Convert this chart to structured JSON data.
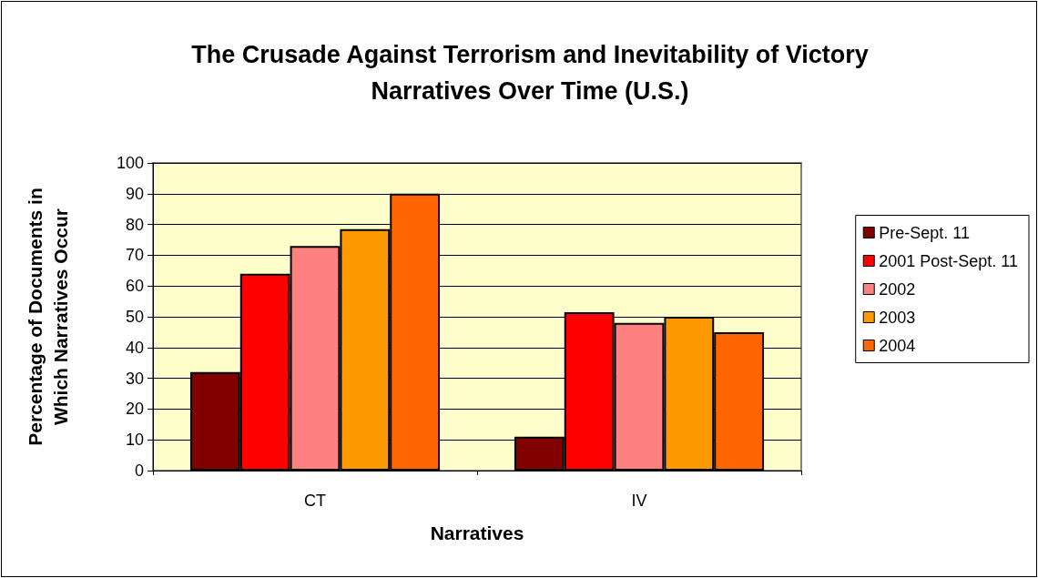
{
  "chart_data": {
    "type": "bar",
    "title": "The Crusade Against Terrorism and Inevitability of Victory\nNarratives Over Time (U.S.)",
    "xlabel": "Narratives",
    "ylabel": "Percentage of Documents in\nWhich Narratives Occur",
    "categories": [
      "CT",
      "IV"
    ],
    "series": [
      {
        "name": "Pre-Sept. 11",
        "color": "#800000",
        "values": [
          32,
          11
        ]
      },
      {
        "name": "2001 Post-Sept. 11",
        "color": "#ff0000",
        "values": [
          64,
          51.5
        ]
      },
      {
        "name": "2002",
        "color": "#ff8080",
        "values": [
          73,
          48
        ]
      },
      {
        "name": "2003",
        "color": "#ff9900",
        "values": [
          78.5,
          50
        ]
      },
      {
        "name": "2004",
        "color": "#ff6600",
        "values": [
          90,
          45
        ]
      }
    ],
    "ylim": [
      0,
      100
    ],
    "yticks": [
      0,
      10,
      20,
      30,
      40,
      50,
      60,
      70,
      80,
      90,
      100
    ],
    "grid": "y",
    "legend": "right"
  }
}
